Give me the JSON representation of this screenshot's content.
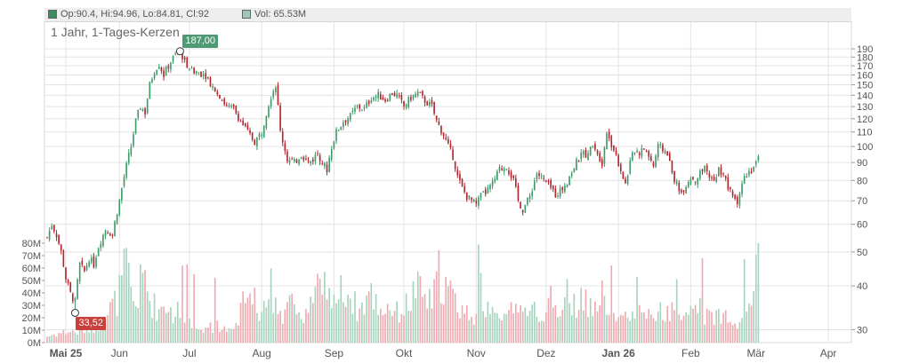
{
  "legend": {
    "ohlc_text": "Op:90.4, Hi:94.96, Lo:84.81, Cl:92",
    "volume_text": "Vol: 65.53M",
    "ohlc_color": "#3a8a63",
    "volume_color": "#9cc9b4"
  },
  "title": "1 Jahr, 1-Tages-Kerzen",
  "high_marker": {
    "label": "187,00",
    "color": "#4e9a74"
  },
  "low_marker": {
    "label": "33,52",
    "color": "#c9403b"
  },
  "colors": {
    "up": "#3d9b6b",
    "down": "#b3252c",
    "vol_up": "#a6d3bd",
    "vol_down": "#eeaab0",
    "grid": "#e3e3e3"
  },
  "chart_data": {
    "type": "candlestick",
    "title": "1 Jahr, 1-Tages-Kerzen",
    "y_scale": "log",
    "price_ylim": [
      26,
      205
    ],
    "price_ticks": [
      30,
      40,
      50,
      60,
      70,
      80,
      90,
      100,
      110,
      120,
      130,
      140,
      150,
      160,
      170,
      180,
      190
    ],
    "price_tick_labels": [
      "30",
      "40",
      "50",
      "60",
      "70",
      "80",
      "90",
      "100",
      "110",
      "120",
      "130",
      "140",
      "150",
      "160",
      "170",
      "180",
      "190"
    ],
    "volume_ylim": [
      0,
      80
    ],
    "volume_ticks": [
      0,
      10,
      20,
      30,
      40,
      50,
      60,
      70,
      80
    ],
    "volume_tick_labels": [
      "0M",
      "10M",
      "20M",
      "30M",
      "40M",
      "50M",
      "60M",
      "70M",
      "80M"
    ],
    "x_tick_labels": [
      "Mai 25",
      "Jun",
      "Jul",
      "Aug",
      "Sep",
      "Okt",
      "Nov",
      "Dez",
      "Jan 26",
      "Feb",
      "Mär",
      "Apr"
    ],
    "x_tick_bold": [
      true,
      false,
      false,
      false,
      false,
      false,
      false,
      false,
      true,
      false,
      false,
      false
    ],
    "x_tick_day": [
      8,
      31,
      61,
      92,
      123,
      153,
      184,
      214,
      245,
      276,
      304,
      335
    ],
    "day_range": [
      0,
      343
    ],
    "close_path": [
      [
        0,
        55
      ],
      [
        2,
        60
      ],
      [
        4,
        56
      ],
      [
        6,
        50
      ],
      [
        8,
        42
      ],
      [
        10,
        38
      ],
      [
        12,
        36
      ],
      [
        14,
        46
      ],
      [
        16,
        44
      ],
      [
        18,
        48
      ],
      [
        20,
        46
      ],
      [
        22,
        52
      ],
      [
        25,
        58
      ],
      [
        28,
        56
      ],
      [
        31,
        70
      ],
      [
        34,
        88
      ],
      [
        36,
        100
      ],
      [
        38,
        118
      ],
      [
        40,
        130
      ],
      [
        42,
        125
      ],
      [
        44,
        150
      ],
      [
        46,
        165
      ],
      [
        48,
        172
      ],
      [
        50,
        160
      ],
      [
        53,
        175
      ],
      [
        55,
        182
      ],
      [
        57,
        187
      ],
      [
        59,
        175
      ],
      [
        62,
        165
      ],
      [
        65,
        163
      ],
      [
        68,
        160
      ],
      [
        71,
        148
      ],
      [
        74,
        140
      ],
      [
        77,
        130
      ],
      [
        80,
        128
      ],
      [
        83,
        118
      ],
      [
        86,
        110
      ],
      [
        89,
        103
      ],
      [
        92,
        110
      ],
      [
        94,
        125
      ],
      [
        96,
        140
      ],
      [
        98,
        150
      ],
      [
        100,
        110
      ],
      [
        103,
        92
      ],
      [
        106,
        90
      ],
      [
        109,
        95
      ],
      [
        112,
        90
      ],
      [
        114,
        92
      ],
      [
        116,
        96
      ],
      [
        118,
        90
      ],
      [
        120,
        86
      ],
      [
        122,
        100
      ],
      [
        124,
        110
      ],
      [
        127,
        118
      ],
      [
        130,
        122
      ],
      [
        133,
        130
      ],
      [
        136,
        128
      ],
      [
        139,
        138
      ],
      [
        142,
        140
      ],
      [
        145,
        136
      ],
      [
        148,
        142
      ],
      [
        150,
        140
      ],
      [
        153,
        130
      ],
      [
        156,
        138
      ],
      [
        159,
        142
      ],
      [
        162,
        135
      ],
      [
        165,
        130
      ],
      [
        167,
        118
      ],
      [
        170,
        108
      ],
      [
        172,
        100
      ],
      [
        174,
        94
      ],
      [
        176,
        82
      ],
      [
        178,
        76
      ],
      [
        180,
        72
      ],
      [
        182,
        70
      ],
      [
        184,
        68
      ],
      [
        186,
        72
      ],
      [
        188,
        74
      ],
      [
        191,
        78
      ],
      [
        194,
        86
      ],
      [
        197,
        88
      ],
      [
        200,
        80
      ],
      [
        202,
        70
      ],
      [
        204,
        66
      ],
      [
        207,
        72
      ],
      [
        210,
        84
      ],
      [
        213,
        80
      ],
      [
        216,
        76
      ],
      [
        218,
        73
      ],
      [
        221,
        76
      ],
      [
        224,
        82
      ],
      [
        227,
        90
      ],
      [
        230,
        96
      ],
      [
        232,
        94
      ],
      [
        234,
        103
      ],
      [
        236,
        96
      ],
      [
        238,
        90
      ],
      [
        240,
        110
      ],
      [
        242,
        102
      ],
      [
        244,
        94
      ],
      [
        246,
        86
      ],
      [
        248,
        78
      ],
      [
        250,
        90
      ],
      [
        252,
        98
      ],
      [
        254,
        96
      ],
      [
        256,
        99
      ],
      [
        258,
        94
      ],
      [
        260,
        88
      ],
      [
        262,
        100
      ],
      [
        264,
        98
      ],
      [
        266,
        96
      ],
      [
        268,
        84
      ],
      [
        270,
        78
      ],
      [
        272,
        74
      ],
      [
        274,
        78
      ],
      [
        276,
        82
      ],
      [
        278,
        80
      ],
      [
        280,
        84
      ],
      [
        282,
        86
      ],
      [
        284,
        82
      ],
      [
        286,
        80
      ],
      [
        288,
        86
      ],
      [
        290,
        84
      ],
      [
        292,
        76
      ],
      [
        294,
        72
      ],
      [
        296,
        70
      ],
      [
        298,
        78
      ],
      [
        300,
        84
      ],
      [
        302,
        86
      ],
      [
        304,
        90
      ],
      [
        305,
        92
      ]
    ],
    "high": {
      "value": 187.0,
      "day": 57
    },
    "low": {
      "value": 33.52,
      "day": 12
    },
    "volume_path": [
      [
        0,
        5
      ],
      [
        6,
        8
      ],
      [
        10,
        9
      ],
      [
        14,
        8
      ],
      [
        18,
        12
      ],
      [
        22,
        14
      ],
      [
        24,
        18
      ],
      [
        26,
        24
      ],
      [
        28,
        30
      ],
      [
        30,
        34
      ],
      [
        32,
        48
      ],
      [
        34,
        62
      ],
      [
        36,
        40
      ],
      [
        38,
        30
      ],
      [
        40,
        46
      ],
      [
        42,
        54
      ],
      [
        44,
        34
      ],
      [
        46,
        30
      ],
      [
        48,
        26
      ],
      [
        50,
        32
      ],
      [
        52,
        30
      ],
      [
        54,
        22
      ],
      [
        56,
        26
      ],
      [
        58,
        18
      ],
      [
        60,
        16
      ],
      [
        62,
        12
      ],
      [
        64,
        10
      ],
      [
        66,
        12
      ],
      [
        68,
        10
      ],
      [
        70,
        12
      ],
      [
        72,
        14
      ],
      [
        74,
        12
      ],
      [
        76,
        10
      ],
      [
        78,
        12
      ],
      [
        80,
        16
      ],
      [
        82,
        22
      ],
      [
        84,
        30
      ],
      [
        86,
        40
      ],
      [
        88,
        34
      ],
      [
        90,
        30
      ],
      [
        92,
        22
      ],
      [
        94,
        26
      ],
      [
        96,
        44
      ],
      [
        98,
        34
      ],
      [
        100,
        28
      ],
      [
        102,
        22
      ],
      [
        104,
        30
      ],
      [
        106,
        34
      ],
      [
        108,
        28
      ],
      [
        110,
        24
      ],
      [
        112,
        30
      ],
      [
        114,
        36
      ],
      [
        116,
        40
      ],
      [
        118,
        34
      ],
      [
        120,
        28
      ],
      [
        122,
        46
      ],
      [
        124,
        36
      ],
      [
        126,
        40
      ],
      [
        128,
        44
      ],
      [
        130,
        38
      ],
      [
        132,
        30
      ],
      [
        134,
        26
      ],
      [
        136,
        32
      ],
      [
        138,
        40
      ],
      [
        140,
        36
      ],
      [
        142,
        30
      ],
      [
        144,
        26
      ],
      [
        146,
        30
      ],
      [
        148,
        28
      ],
      [
        150,
        24
      ],
      [
        152,
        26
      ],
      [
        154,
        30
      ],
      [
        156,
        34
      ],
      [
        158,
        44
      ],
      [
        160,
        40
      ],
      [
        162,
        36
      ],
      [
        164,
        32
      ],
      [
        166,
        38
      ],
      [
        168,
        56
      ],
      [
        170,
        48
      ],
      [
        172,
        42
      ],
      [
        174,
        36
      ],
      [
        176,
        30
      ],
      [
        178,
        28
      ],
      [
        180,
        24
      ],
      [
        182,
        26
      ],
      [
        184,
        22
      ],
      [
        186,
        24
      ],
      [
        188,
        26
      ],
      [
        190,
        28
      ],
      [
        192,
        34
      ],
      [
        194,
        30
      ],
      [
        196,
        28
      ],
      [
        198,
        26
      ],
      [
        200,
        30
      ],
      [
        202,
        24
      ],
      [
        204,
        22
      ],
      [
        206,
        24
      ],
      [
        208,
        28
      ],
      [
        210,
        26
      ],
      [
        212,
        24
      ],
      [
        214,
        30
      ],
      [
        216,
        34
      ],
      [
        218,
        36
      ],
      [
        220,
        30
      ],
      [
        222,
        40
      ],
      [
        224,
        34
      ],
      [
        226,
        30
      ],
      [
        228,
        32
      ],
      [
        230,
        34
      ],
      [
        232,
        28
      ],
      [
        234,
        26
      ],
      [
        236,
        30
      ],
      [
        238,
        44
      ],
      [
        240,
        36
      ],
      [
        242,
        30
      ],
      [
        244,
        26
      ],
      [
        246,
        24
      ],
      [
        248,
        20
      ],
      [
        250,
        24
      ],
      [
        252,
        22
      ],
      [
        254,
        26
      ],
      [
        256,
        24
      ],
      [
        258,
        20
      ],
      [
        260,
        22
      ],
      [
        262,
        26
      ],
      [
        264,
        24
      ],
      [
        266,
        22
      ],
      [
        268,
        26
      ],
      [
        270,
        22
      ],
      [
        272,
        20
      ],
      [
        274,
        22
      ],
      [
        276,
        24
      ],
      [
        278,
        22
      ],
      [
        280,
        26
      ],
      [
        282,
        22
      ],
      [
        284,
        20
      ],
      [
        286,
        24
      ],
      [
        288,
        22
      ],
      [
        290,
        26
      ],
      [
        292,
        24
      ],
      [
        294,
        22
      ],
      [
        296,
        18
      ],
      [
        298,
        20
      ],
      [
        300,
        28
      ],
      [
        302,
        32
      ],
      [
        305,
        66
      ]
    ],
    "volume_peaks": [
      [
        58,
        62
      ],
      [
        60,
        63
      ],
      [
        63,
        55
      ],
      [
        72,
        52
      ],
      [
        119,
        57
      ],
      [
        185,
        79
      ],
      [
        186,
        56
      ],
      [
        242,
        62
      ],
      [
        253,
        53
      ],
      [
        270,
        51
      ],
      [
        281,
        68
      ],
      [
        299,
        67
      ]
    ]
  }
}
